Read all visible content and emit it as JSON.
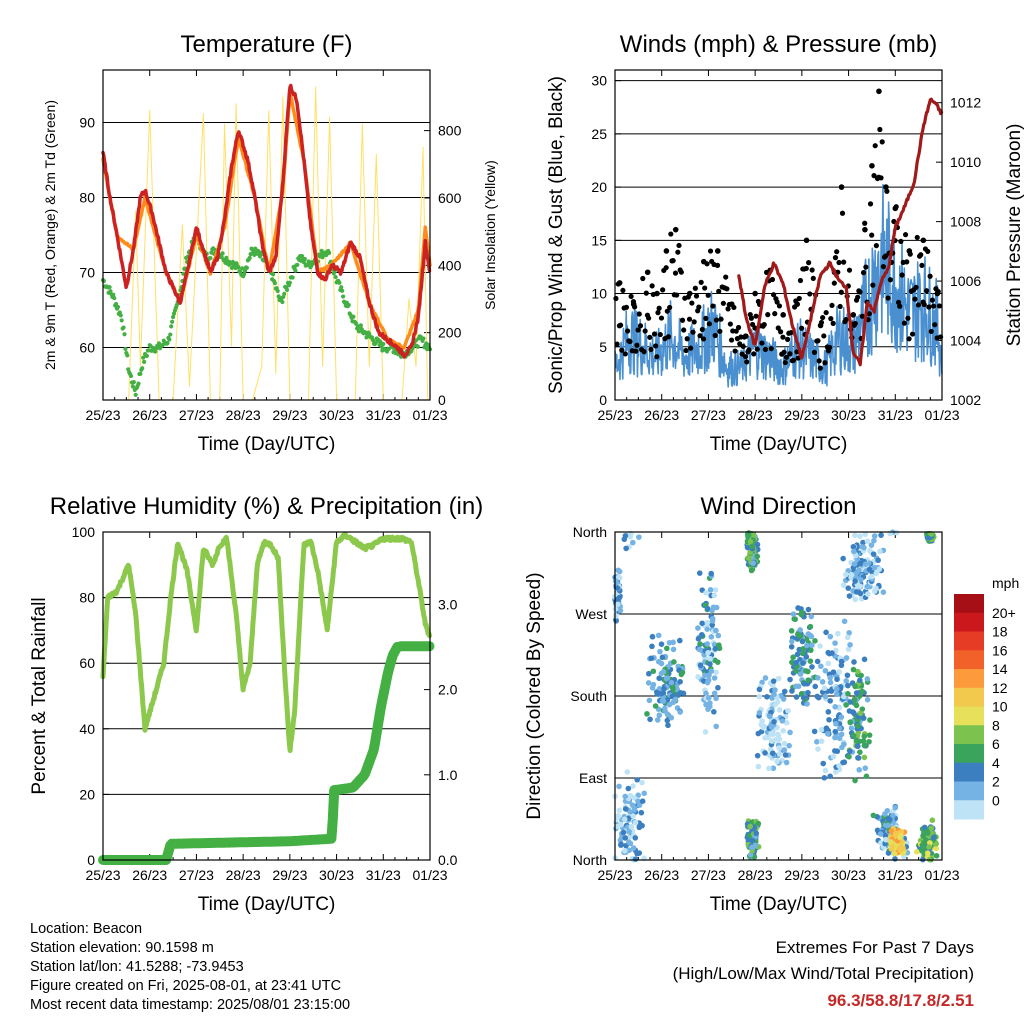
{
  "colors": {
    "air_2m": "#cc2222",
    "air_9m": "#ff8c1a",
    "dewpoint": "#44b044",
    "solar": "#ffe066",
    "wind": "#4a90d0",
    "gust": "#000000",
    "pressure": "#a01a1a",
    "rh": "#8cc84b",
    "precip": "#44b044",
    "extremes": "#c62828"
  },
  "x_ticks": [
    "25/23",
    "26/23",
    "27/23",
    "28/23",
    "29/23",
    "30/23",
    "31/23",
    "01/23"
  ],
  "chart_data": [
    {
      "type": "line",
      "title": "Temperature (F)",
      "xlabel": "Time (Day/UTC)",
      "ylabel": "2m & 9m T (Red, Orange) & 2m Td (Green)",
      "ylabel_right": "Solar Insolation (Yellow)",
      "ylim": [
        53,
        97
      ],
      "yticks": [
        60,
        70,
        80,
        90
      ],
      "ylim_right": [
        0,
        980
      ],
      "yticks_right": [
        0,
        200,
        400,
        600,
        800
      ],
      "grid": true,
      "series": [
        {
          "role": "2m T",
          "color_key": "air_2m",
          "x": [
            0,
            0.15,
            0.3,
            0.5,
            0.65,
            0.8,
            0.9,
            1.05,
            1.2,
            1.35,
            1.5,
            1.65,
            1.8,
            2.0,
            2.15,
            2.3,
            2.45,
            2.6,
            2.75,
            2.9,
            3.1,
            3.25,
            3.4,
            3.55,
            3.7,
            3.85,
            4.0,
            4.15,
            4.3,
            4.45,
            4.6,
            4.75,
            4.9,
            5.1,
            5.3,
            5.5,
            5.7,
            5.9,
            6.1,
            6.3,
            6.45,
            6.6,
            6.75,
            6.9,
            7.0
          ],
          "values": [
            86,
            80,
            75,
            68,
            73,
            80,
            81,
            78,
            74,
            70,
            68,
            66,
            70,
            76,
            73,
            70,
            72,
            77,
            84,
            89,
            85,
            80,
            74,
            70,
            72,
            82,
            95,
            93,
            85,
            76,
            70,
            69,
            71,
            70,
            74,
            72,
            66,
            62,
            61,
            60,
            59,
            60,
            64,
            74,
            70
          ]
        },
        {
          "role": "9m T",
          "color_key": "air_9m",
          "x": [
            0,
            0.3,
            0.65,
            0.9,
            1.35,
            1.65,
            2.0,
            2.3,
            2.6,
            2.9,
            3.25,
            3.55,
            3.85,
            4.0,
            4.3,
            4.6,
            4.9,
            5.3,
            5.7,
            6.1,
            6.45,
            6.75,
            6.9,
            7.0
          ],
          "values": [
            85,
            75,
            73,
            80,
            70,
            66,
            75,
            70,
            76,
            88,
            80,
            70,
            81,
            94,
            85,
            70,
            71,
            74,
            66,
            61,
            60,
            65,
            76,
            71
          ]
        },
        {
          "role": "2m Td",
          "color_key": "dewpoint",
          "x": [
            0,
            0.2,
            0.4,
            0.55,
            0.7,
            0.85,
            1.0,
            1.2,
            1.4,
            1.6,
            1.8,
            2.0,
            2.2,
            2.4,
            2.6,
            2.8,
            3.0,
            3.2,
            3.4,
            3.6,
            3.8,
            4.0,
            4.2,
            4.4,
            4.6,
            4.8,
            5.0,
            5.2,
            5.4,
            5.6,
            5.8,
            6.0,
            6.2,
            6.4,
            6.6,
            6.8,
            7.0
          ],
          "values": [
            69,
            67,
            64,
            57,
            54,
            58,
            60,
            60,
            61,
            66,
            72,
            75,
            72,
            73,
            72,
            71,
            70,
            73,
            72,
            70,
            66,
            69,
            72,
            71,
            72,
            73,
            69,
            66,
            63,
            62,
            61,
            60,
            60,
            59,
            60,
            61,
            60
          ]
        },
        {
          "role": "Solar Insolation",
          "color_key": "solar",
          "axis": "right",
          "x": [
            0.55,
            0.7,
            0.8,
            1.0,
            1.2,
            1.5,
            1.7,
            1.85,
            2.15,
            2.3,
            2.5,
            2.6,
            2.75,
            2.85,
            3.0,
            3.2,
            3.4,
            3.55,
            3.7,
            3.85,
            4.0,
            4.2,
            4.4,
            4.55,
            4.7,
            4.85,
            5.0,
            5.2,
            5.4,
            5.55,
            5.7,
            5.85,
            6.0,
            6.2,
            6.4,
            6.55,
            6.7,
            6.85,
            6.95
          ],
          "values": [
            0,
            560,
            100,
            860,
            0,
            0,
            520,
            40,
            850,
            0,
            0,
            820,
            160,
            880,
            0,
            0,
            100,
            860,
            80,
            900,
            0,
            0,
            0,
            930,
            100,
            840,
            0,
            0,
            0,
            820,
            100,
            730,
            0,
            0,
            0,
            300,
            100,
            750,
            0
          ]
        }
      ]
    },
    {
      "type": "line",
      "title": "Winds (mph) & Pressure (mb)",
      "xlabel": "Time (Day/UTC)",
      "ylabel": "Sonic/Prop Wind & Gust (Blue, Black)",
      "ylabel_right": "Station Pressure (Maroon)",
      "ylim": [
        0,
        31
      ],
      "yticks": [
        0,
        5,
        10,
        15,
        20,
        25,
        30
      ],
      "ylim_right": [
        1002,
        1013.1
      ],
      "yticks_right": [
        1002,
        1004,
        1006,
        1008,
        1010,
        1012
      ],
      "grid": true,
      "series": [
        {
          "role": "Wind",
          "color_key": "wind",
          "x": [
            0,
            0.3,
            0.6,
            0.9,
            1.2,
            1.5,
            1.8,
            2.1,
            2.4,
            2.7,
            3.0,
            3.3,
            3.6,
            3.9,
            4.2,
            4.5,
            4.8,
            5.1,
            5.4,
            5.7,
            6.0,
            6.3,
            6.6,
            6.9,
            7.0
          ],
          "values": [
            3,
            6,
            5,
            4,
            6,
            4,
            5,
            7,
            3,
            3,
            5,
            4,
            3,
            5,
            4,
            3,
            6,
            5,
            9,
            13,
            11,
            8,
            9,
            7,
            4
          ]
        },
        {
          "role": "Gust",
          "color_key": "gust",
          "x": [
            0.1,
            0.4,
            0.7,
            0.9,
            1.1,
            1.3,
            1.6,
            1.9,
            2.2,
            2.5,
            2.8,
            3.0,
            3.3,
            3.6,
            3.9,
            4.1,
            4.4,
            4.7,
            4.85,
            5.1,
            5.35,
            5.5,
            5.65,
            5.8,
            6.0,
            6.3,
            6.6,
            6.9
          ],
          "values": [
            11,
            9,
            12,
            10,
            14,
            16,
            10,
            13,
            14,
            9,
            6,
            10,
            12,
            8,
            9,
            15,
            7,
            12,
            20,
            8,
            16,
            22,
            29,
            20,
            18,
            14,
            15,
            10
          ]
        },
        {
          "role": "Station Pressure",
          "color_key": "pressure",
          "axis": "right",
          "x": [
            2.65,
            2.8,
            3.0,
            3.2,
            3.4,
            3.6,
            3.8,
            4.0,
            4.2,
            4.4,
            4.6,
            4.8,
            4.95,
            5.1,
            5.25,
            5.4,
            5.55,
            5.7,
            5.85,
            6.0,
            6.2,
            6.4,
            6.6,
            6.75,
            6.85,
            7.0
          ],
          "values": [
            1006.2,
            1004.8,
            1003.8,
            1005.8,
            1006.6,
            1005.9,
            1004.5,
            1003.4,
            1004.8,
            1006.2,
            1006.6,
            1006.0,
            1005.8,
            1003.6,
            1003.2,
            1005.3,
            1005.0,
            1006.0,
            1006.4,
            1007.8,
            1008.5,
            1009.3,
            1011.2,
            1012.1,
            1012.0,
            1011.6
          ]
        }
      ]
    },
    {
      "type": "line",
      "title": "Relative Humidity (%) & Precipitation (in)",
      "xlabel": "Time (Day/UTC)",
      "ylabel": "Percent & Total Rainfall",
      "ylim": [
        0,
        100
      ],
      "yticks": [
        0,
        20,
        40,
        60,
        80,
        100
      ],
      "ylim_right": [
        0,
        3.85
      ],
      "yticks_right": [
        "0.0",
        "1.0",
        "2.0",
        "3.0"
      ],
      "grid": true,
      "series": [
        {
          "role": "Relative Humidity",
          "color_key": "rh",
          "x": [
            0,
            0.1,
            0.3,
            0.55,
            0.7,
            0.9,
            1.1,
            1.3,
            1.45,
            1.6,
            1.8,
            2.0,
            2.15,
            2.35,
            2.5,
            2.65,
            2.85,
            3.0,
            3.15,
            3.3,
            3.45,
            3.6,
            3.75,
            3.9,
            4.0,
            4.1,
            4.3,
            4.45,
            4.6,
            4.8,
            5.0,
            5.2,
            5.4,
            5.6,
            5.8,
            6.0,
            6.2,
            6.4,
            6.6,
            6.75,
            6.9,
            7.0
          ],
          "values": [
            56,
            80,
            82,
            90,
            75,
            40,
            50,
            60,
            80,
            97,
            88,
            70,
            95,
            90,
            96,
            98,
            75,
            52,
            60,
            90,
            97,
            96,
            92,
            55,
            33,
            45,
            96,
            97,
            88,
            70,
            97,
            99,
            97,
            95,
            96,
            98,
            98,
            98,
            97,
            85,
            72,
            68
          ]
        },
        {
          "role": "Total Rainfall",
          "color_key": "precip",
          "axis": "right",
          "x": [
            0,
            1.35,
            1.45,
            4.0,
            4.9,
            4.95,
            5.35,
            5.6,
            5.8,
            5.95,
            6.1,
            6.2,
            6.3,
            6.4,
            6.6,
            7.0
          ],
          "values": [
            0,
            0,
            0.19,
            0.22,
            0.25,
            0.82,
            0.85,
            1.0,
            1.3,
            1.8,
            2.2,
            2.4,
            2.5,
            2.51,
            2.51,
            2.51
          ]
        }
      ]
    },
    {
      "type": "scatter",
      "title": "Wind Direction",
      "xlabel": "Time (Day/UTC)",
      "ylabel": "Direction (Colored By Speed)",
      "ylim": [
        0,
        360
      ],
      "yticks": [
        "North",
        "East",
        "South",
        "West",
        "North"
      ],
      "grid": true,
      "colorbar": {
        "unit": "mph",
        "labels": [
          "20+",
          "18",
          "16",
          "14",
          "12",
          "10",
          "8",
          "6",
          "4",
          "2",
          "0"
        ],
        "colors": [
          "#a50f15",
          "#cb181d",
          "#e63b24",
          "#f2612a",
          "#fd9a3c",
          "#f2c94c",
          "#e6e05a",
          "#7cc24f",
          "#3aa35c",
          "#3b7fc1",
          "#74b3e3",
          "#bfe3f6"
        ]
      },
      "clusters": [
        {
          "x_center": 0.3,
          "dir_center": 40,
          "spread_x": 0.35,
          "spread_dir": 60,
          "speed": 3
        },
        {
          "x_center": 0.05,
          "dir_center": 290,
          "spread_x": 0.08,
          "spread_dir": 30,
          "speed": 3
        },
        {
          "x_center": 1.1,
          "dir_center": 195,
          "spread_x": 0.45,
          "spread_dir": 60,
          "speed": 5
        },
        {
          "x_center": 2.0,
          "dir_center": 230,
          "spread_x": 0.3,
          "spread_dir": 100,
          "speed": 4
        },
        {
          "x_center": 2.95,
          "dir_center": 340,
          "spread_x": 0.15,
          "spread_dir": 25,
          "speed": 6
        },
        {
          "x_center": 2.95,
          "dir_center": 25,
          "spread_x": 0.15,
          "spread_dir": 25,
          "speed": 6
        },
        {
          "x_center": 3.4,
          "dir_center": 150,
          "spread_x": 0.4,
          "spread_dir": 60,
          "speed": 2
        },
        {
          "x_center": 4.0,
          "dir_center": 230,
          "spread_x": 0.3,
          "spread_dir": 70,
          "speed": 5
        },
        {
          "x_center": 4.7,
          "dir_center": 170,
          "spread_x": 0.45,
          "spread_dir": 100,
          "speed": 3
        },
        {
          "x_center": 5.3,
          "dir_center": 320,
          "spread_x": 0.5,
          "spread_dir": 40,
          "speed": 3
        },
        {
          "x_center": 5.2,
          "dir_center": 150,
          "spread_x": 0.3,
          "spread_dir": 80,
          "speed": 6
        },
        {
          "x_center": 5.9,
          "dir_center": 30,
          "spread_x": 0.4,
          "spread_dir": 40,
          "speed": 4
        },
        {
          "x_center": 6.05,
          "dir_center": 20,
          "spread_x": 0.2,
          "spread_dir": 15,
          "speed": 13
        },
        {
          "x_center": 6.7,
          "dir_center": 20,
          "spread_x": 0.25,
          "spread_dir": 25,
          "speed": 8
        },
        {
          "x_center": 6.75,
          "dir_center": 355,
          "spread_x": 0.08,
          "spread_dir": 6,
          "speed": 7
        }
      ]
    }
  ],
  "info": {
    "location": "Location: Beacon",
    "elevation": "Station elevation: 90.1598 m",
    "latlon": "Station lat/lon: 41.5288; -73.9453",
    "created": "Figure created on Fri, 2025-08-01, at 23:41 UTC",
    "recent": "Most recent data timestamp: 2025/08/01 23:15:00"
  },
  "extremes": {
    "title": "Extremes For Past 7 Days",
    "subtitle": "(High/Low/Max Wind/Total Precipitation)",
    "values": "96.3/58.8/17.8/2.51"
  }
}
